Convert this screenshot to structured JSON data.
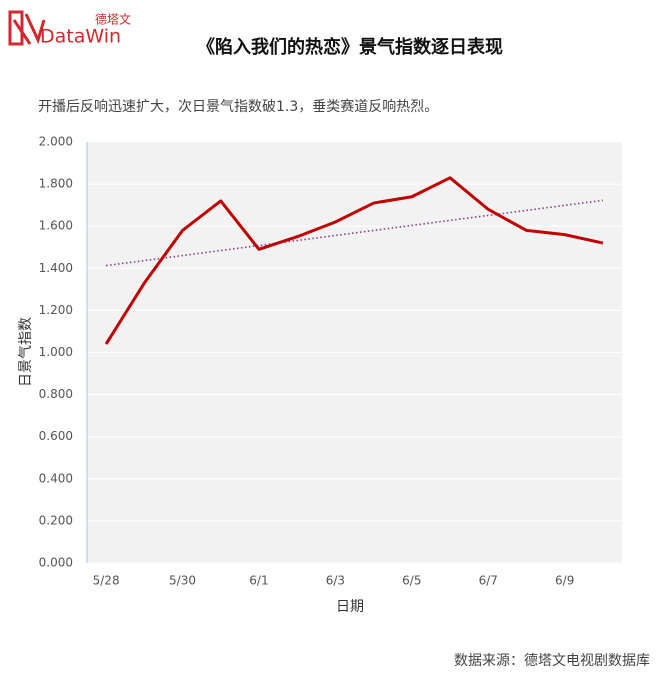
{
  "logo": {
    "brand": "DataWin",
    "cn": "德塔文"
  },
  "chart_data": {
    "type": "line",
    "title": "《陷入我们的热恋》景气指数逐日表现",
    "subtitle": "开播后反响迅速扩大，次日景气指数破1.3，垂类赛道反响热烈。",
    "x_label": "日期",
    "y_label": "日景气指数",
    "categories": [
      "5/28",
      null,
      "5/30",
      null,
      "6/1",
      null,
      "6/3",
      null,
      "6/5",
      null,
      "6/7",
      null,
      "6/9",
      null
    ],
    "series": [
      {
        "color": "#c00000",
        "values": [
          1.04,
          1.33,
          1.58,
          1.72,
          1.49,
          1.55,
          1.62,
          1.71,
          1.74,
          1.83,
          1.68,
          1.58,
          1.56,
          1.52
        ]
      }
    ],
    "trendline": {
      "type": "linear",
      "color": "#8b3a8b"
    },
    "ylim": [
      0,
      2
    ],
    "yticks": [
      {
        "value": 0,
        "label": "0.000"
      },
      {
        "value": 0.2,
        "label": "0.200"
      },
      {
        "value": 0.4,
        "label": "0.400"
      },
      {
        "value": 0.6,
        "label": "0.600"
      },
      {
        "value": 0.8,
        "label": "0.800"
      },
      {
        "value": 1,
        "label": "1.000"
      },
      {
        "value": 1.2,
        "label": "1.200"
      },
      {
        "value": 1.4,
        "label": "1.400"
      },
      {
        "value": 1.6,
        "label": "1.600"
      },
      {
        "value": 1.8,
        "label": "1.800"
      },
      {
        "value": 2,
        "label": "2.000"
      }
    ],
    "grid": true,
    "source": "数据来源：德塔文电视剧数据库"
  }
}
